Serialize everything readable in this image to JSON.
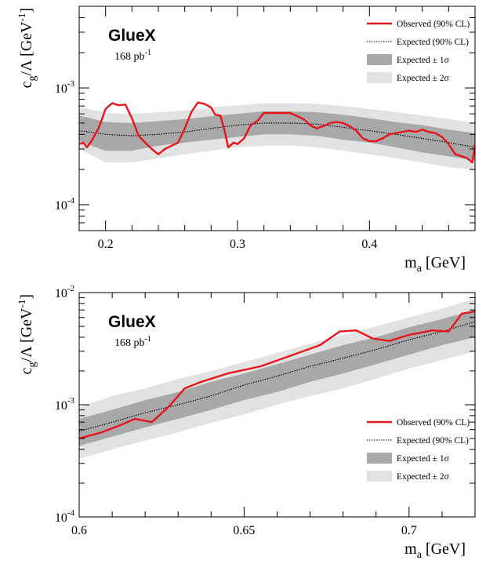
{
  "chart_data": [
    {
      "type": "line",
      "experiment": "GlueX",
      "luminosity": "168 pb",
      "luminosity_sup": "-1",
      "xlabel_main": "m",
      "xlabel_sub": "a",
      "xlabel_unit": " [GeV]",
      "ylabel_main": "c",
      "ylabel_sub": "g",
      "ylabel_unit": "/Λ [GeV",
      "ylabel_sup": "-1",
      "ylabel_close": "]",
      "xlim": [
        0.18,
        0.48
      ],
      "ylim": [
        6e-05,
        0.005
      ],
      "yscale": "log",
      "xticks": [
        0.2,
        0.3,
        0.4
      ],
      "xtick_labels": [
        "0.2",
        "0.3",
        "0.4"
      ],
      "yticks": [
        {
          "mantissa": "10",
          "exp": "-3",
          "value": 0.001
        },
        {
          "mantissa": "10",
          "exp": "-4",
          "value": 0.0001
        }
      ],
      "legend_position": "top-right",
      "legend": [
        {
          "label": "Observed (90% CL)",
          "style": "red-line"
        },
        {
          "label": "Expected (90% CL)",
          "style": "dotted-line"
        },
        {
          "label": "Expected ± 1σ",
          "style": "dark-band"
        },
        {
          "label": "Expected ± 2σ",
          "style": "light-band"
        }
      ],
      "series": [
        {
          "name": "Observed (90% CL)",
          "color": "#e8141c",
          "x": [
            0.18,
            0.183,
            0.186,
            0.19,
            0.195,
            0.2,
            0.205,
            0.21,
            0.215,
            0.22,
            0.225,
            0.23,
            0.235,
            0.24,
            0.245,
            0.25,
            0.255,
            0.26,
            0.265,
            0.27,
            0.275,
            0.28,
            0.283,
            0.287,
            0.29,
            0.293,
            0.297,
            0.3,
            0.305,
            0.31,
            0.315,
            0.32,
            0.33,
            0.34,
            0.35,
            0.355,
            0.36,
            0.365,
            0.37,
            0.375,
            0.38,
            0.385,
            0.39,
            0.395,
            0.4,
            0.405,
            0.41,
            0.415,
            0.42,
            0.425,
            0.43,
            0.435,
            0.44,
            0.445,
            0.45,
            0.455,
            0.46,
            0.465,
            0.47,
            0.474,
            0.478,
            0.48
          ],
          "y": [
            0.00033,
            0.00034,
            0.00031,
            0.00036,
            0.00046,
            0.00066,
            0.00074,
            0.00071,
            0.00072,
            0.00055,
            0.00039,
            0.00034,
            0.0003,
            0.00027,
            0.0003,
            0.00032,
            0.00034,
            0.00045,
            0.00062,
            0.00075,
            0.00073,
            0.00068,
            0.00059,
            0.00058,
            0.00044,
            0.00031,
            0.00034,
            0.00033,
            0.00037,
            0.00048,
            0.00052,
            0.00061,
            0.00061,
            0.00061,
            0.00054,
            0.00048,
            0.00045,
            0.00047,
            0.0005,
            0.00051,
            0.0005,
            0.00047,
            0.00043,
            0.00037,
            0.00035,
            0.00035,
            0.00037,
            0.0004,
            0.00041,
            0.00042,
            0.00043,
            0.00042,
            0.00044,
            0.00042,
            0.00041,
            0.00038,
            0.00033,
            0.00027,
            0.00026,
            0.00025,
            0.00023,
            0.00033
          ]
        },
        {
          "name": "Expected (90% CL)",
          "color": "#000000",
          "x": [
            0.18,
            0.2,
            0.22,
            0.24,
            0.26,
            0.28,
            0.3,
            0.32,
            0.34,
            0.36,
            0.38,
            0.4,
            0.42,
            0.44,
            0.46,
            0.48
          ],
          "y": [
            0.00043,
            0.0004,
            0.00039,
            0.0004,
            0.00042,
            0.00045,
            0.00048,
            0.0005,
            0.0005,
            0.00049,
            0.00046,
            0.00043,
            0.0004,
            0.00037,
            0.00034,
            0.00031
          ]
        }
      ],
      "band_1sigma": {
        "x": [
          0.18,
          0.2,
          0.22,
          0.24,
          0.26,
          0.28,
          0.3,
          0.32,
          0.34,
          0.36,
          0.38,
          0.4,
          0.42,
          0.44,
          0.46,
          0.48
        ],
        "lower": [
          0.00035,
          0.00029,
          0.00029,
          0.00032,
          0.00034,
          0.00036,
          0.00038,
          0.0004,
          0.0004,
          0.00039,
          0.00036,
          0.00034,
          0.00031,
          0.00028,
          0.00026,
          0.00024
        ],
        "upper": [
          0.00058,
          0.00051,
          0.0005,
          0.00052,
          0.00054,
          0.00057,
          0.0006,
          0.00063,
          0.00063,
          0.00062,
          0.00059,
          0.00055,
          0.00051,
          0.00048,
          0.00044,
          0.00041
        ]
      },
      "band_2sigma": {
        "x": [
          0.18,
          0.2,
          0.22,
          0.24,
          0.26,
          0.28,
          0.3,
          0.32,
          0.34,
          0.36,
          0.38,
          0.4,
          0.42,
          0.44,
          0.46,
          0.48
        ],
        "lower": [
          0.0003,
          0.00023,
          0.00023,
          0.00025,
          0.00027,
          0.00029,
          0.00031,
          0.00032,
          0.00032,
          0.00031,
          0.00029,
          0.00027,
          0.00025,
          0.00023,
          0.00021,
          0.0002
        ],
        "upper": [
          0.00069,
          0.00061,
          0.0006,
          0.00062,
          0.00064,
          0.00068,
          0.00071,
          0.00074,
          0.00074,
          0.00073,
          0.0007,
          0.00066,
          0.00062,
          0.00058,
          0.00054,
          0.0005
        ]
      }
    },
    {
      "type": "line",
      "experiment": "GlueX",
      "luminosity": "168 pb",
      "luminosity_sup": "-1",
      "xlabel_main": "m",
      "xlabel_sub": "a",
      "xlabel_unit": " [GeV]",
      "ylabel_main": "c",
      "ylabel_sub": "g",
      "ylabel_unit": "/Λ [GeV",
      "ylabel_sup": "-1",
      "ylabel_close": "]",
      "xlim": [
        0.6,
        0.72
      ],
      "ylim": [
        0.0001,
        0.01
      ],
      "yscale": "log",
      "xticks": [
        0.6,
        0.65,
        0.7
      ],
      "xtick_labels": [
        "0.6",
        "0.65",
        "0.7"
      ],
      "yticks": [
        {
          "mantissa": "10",
          "exp": "-2",
          "value": 0.01
        },
        {
          "mantissa": "10",
          "exp": "-3",
          "value": 0.001
        },
        {
          "mantissa": "10",
          "exp": "-4",
          "value": 0.0001
        }
      ],
      "legend_position": "bottom-right",
      "legend": [
        {
          "label": "Observed (90% CL)",
          "style": "red-line"
        },
        {
          "label": "Expected (90% CL)",
          "style": "dotted-line"
        },
        {
          "label": "Expected ± 1σ",
          "style": "dark-band"
        },
        {
          "label": "Expected ± 2σ",
          "style": "light-band"
        }
      ],
      "series": [
        {
          "name": "Observed (90% CL)",
          "color": "#e8141c",
          "x": [
            0.6,
            0.607,
            0.612,
            0.617,
            0.622,
            0.627,
            0.632,
            0.637,
            0.645,
            0.655,
            0.665,
            0.673,
            0.679,
            0.684,
            0.689,
            0.694,
            0.7,
            0.707,
            0.712,
            0.716,
            0.72
          ],
          "y": [
            0.0005,
            0.00057,
            0.00065,
            0.00075,
            0.0007,
            0.00095,
            0.0014,
            0.0016,
            0.0019,
            0.0022,
            0.0028,
            0.0034,
            0.0045,
            0.0046,
            0.0039,
            0.0037,
            0.0042,
            0.0046,
            0.0045,
            0.0065,
            0.0068
          ]
        },
        {
          "name": "Expected (90% CL)",
          "color": "#000000",
          "x": [
            0.6,
            0.61,
            0.62,
            0.63,
            0.64,
            0.65,
            0.66,
            0.67,
            0.68,
            0.69,
            0.7,
            0.71,
            0.72
          ],
          "y": [
            0.00058,
            0.0007,
            0.00085,
            0.001,
            0.0012,
            0.0015,
            0.0018,
            0.0022,
            0.0026,
            0.0031,
            0.0038,
            0.0045,
            0.0055
          ]
        }
      ],
      "band_1sigma": {
        "x": [
          0.6,
          0.61,
          0.62,
          0.63,
          0.64,
          0.65,
          0.66,
          0.67,
          0.68,
          0.69,
          0.7,
          0.71,
          0.72
        ],
        "lower": [
          0.00043,
          0.00052,
          0.00063,
          0.00075,
          0.0009,
          0.0011,
          0.0013,
          0.0016,
          0.0019,
          0.0023,
          0.0028,
          0.0034,
          0.004
        ],
        "upper": [
          0.00075,
          0.0009,
          0.0011,
          0.0013,
          0.0016,
          0.0019,
          0.0023,
          0.0028,
          0.0034,
          0.004,
          0.0049,
          0.0058,
          0.007
        ]
      },
      "band_2sigma": {
        "x": [
          0.6,
          0.61,
          0.62,
          0.63,
          0.64,
          0.65,
          0.66,
          0.67,
          0.68,
          0.69,
          0.7,
          0.71,
          0.72
        ],
        "lower": [
          0.00033,
          0.0004,
          0.00048,
          0.00057,
          0.00069,
          0.00082,
          0.001,
          0.0012,
          0.0014,
          0.0017,
          0.0021,
          0.0025,
          0.003
        ],
        "upper": [
          0.00095,
          0.0012,
          0.0014,
          0.0017,
          0.002,
          0.0024,
          0.0029,
          0.0035,
          0.0042,
          0.005,
          0.006,
          0.0072,
          0.0088
        ]
      }
    }
  ],
  "colors": {
    "observed": "#e8141c",
    "band_1sigma": "#a8a8a8",
    "band_2sigma": "#e2e2e2",
    "expected": "#000000"
  }
}
